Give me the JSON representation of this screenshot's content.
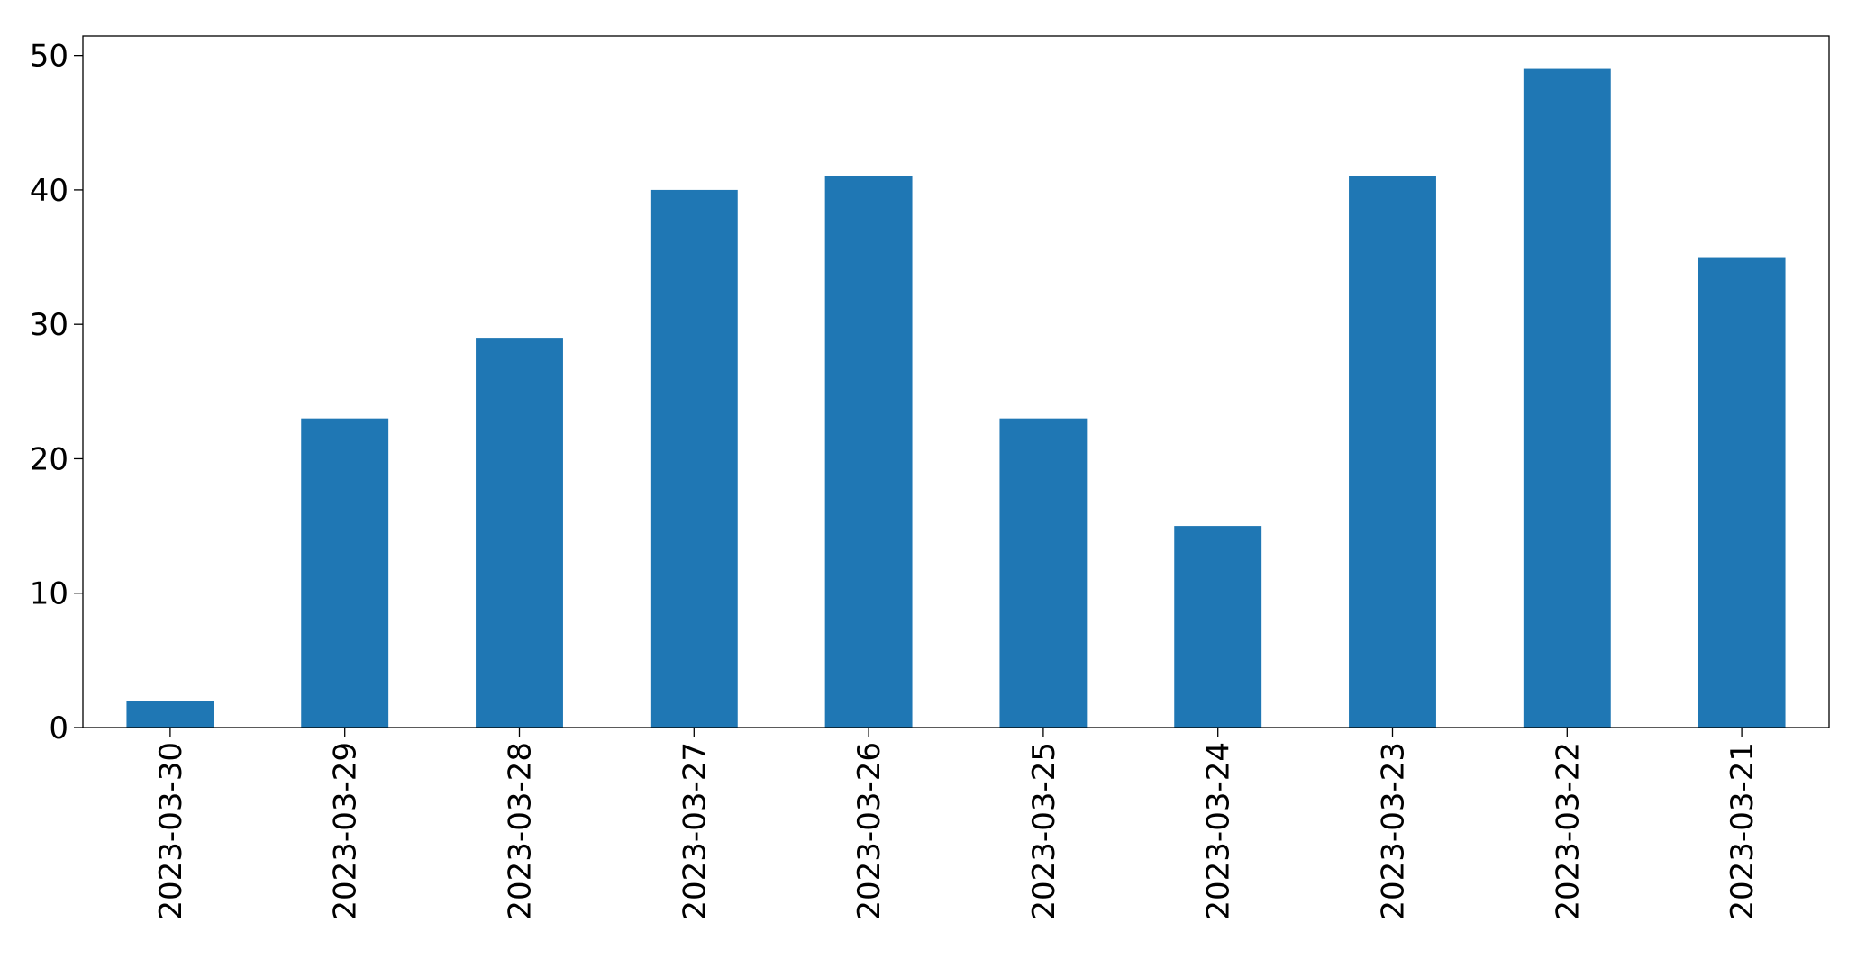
{
  "chart_data": {
    "type": "bar",
    "categories": [
      "2023-03-30",
      "2023-03-29",
      "2023-03-28",
      "2023-03-27",
      "2023-03-26",
      "2023-03-25",
      "2023-03-24",
      "2023-03-23",
      "2023-03-22",
      "2023-03-21"
    ],
    "values": [
      2,
      23,
      29,
      40,
      41,
      23,
      15,
      41,
      49,
      35
    ],
    "color": "#1f77b4",
    "ylim": [
      0,
      51.45
    ],
    "yticks": [
      0,
      10,
      20,
      30,
      40,
      50
    ],
    "grid": false
  }
}
